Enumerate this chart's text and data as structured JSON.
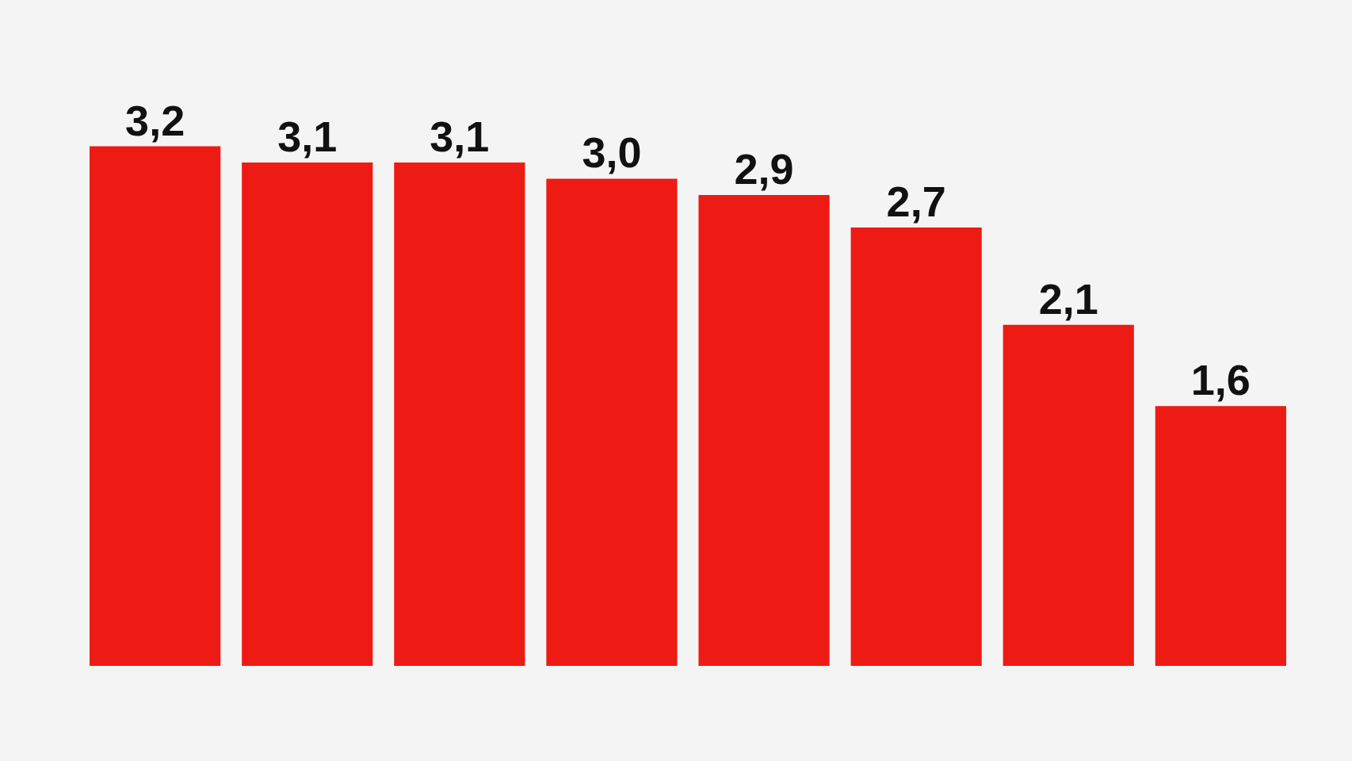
{
  "chart_data": {
    "type": "bar",
    "categories": [
      null,
      null,
      null,
      null,
      null,
      null,
      null,
      null
    ],
    "values": [
      3.2,
      3.1,
      3.1,
      3.0,
      2.9,
      2.7,
      2.1,
      1.6
    ],
    "value_labels": [
      "3,2",
      "3,1",
      "3,1",
      "3,0",
      "2,9",
      "2,7",
      "2,1",
      "1,6"
    ],
    "color": "#ee1b14",
    "tick_labels": false
  }
}
